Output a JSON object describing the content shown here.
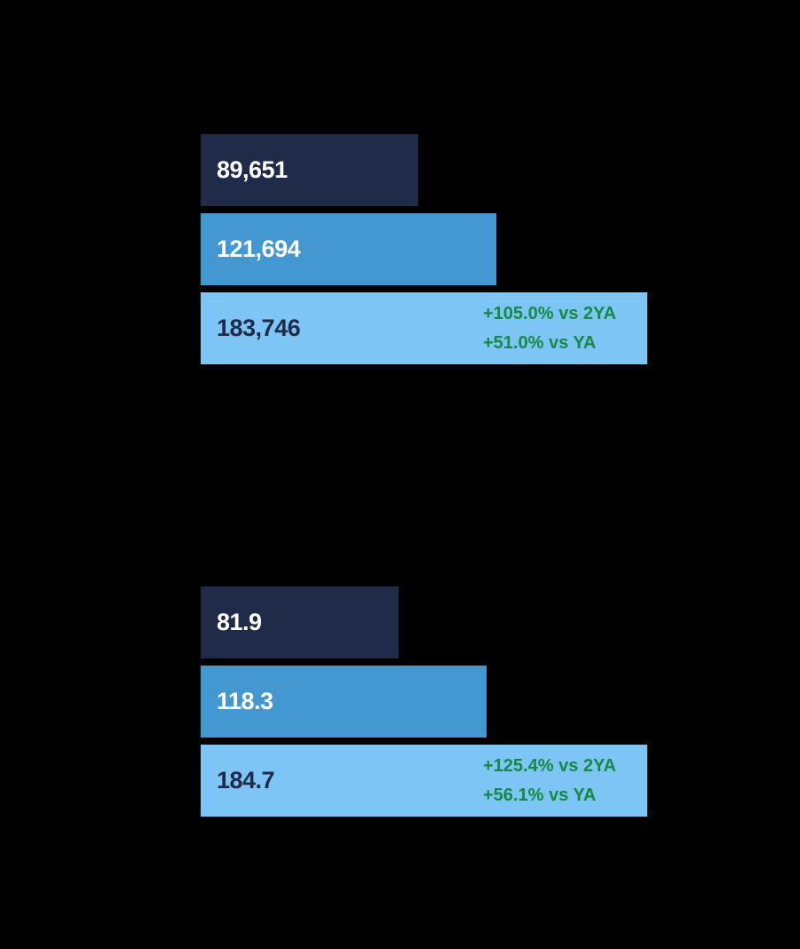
{
  "canvas": {
    "background_color": "#000000"
  },
  "colors": {
    "bar_dark_navy": "#1f2b48",
    "bar_medium_blue": "#4498d1",
    "bar_light_blue": "#7dc5f5",
    "label_white": "#ffffff",
    "label_dark_navy": "#1f2b48",
    "annotation_green": "#148a43"
  },
  "chart_data": [
    {
      "type": "bar",
      "orientation": "horizontal",
      "title": "",
      "xlabel": "",
      "ylabel": "",
      "legend": [],
      "grid": false,
      "xlim": [
        0,
        183746
      ],
      "bars": [
        {
          "label": "89,651",
          "value": 89651,
          "bar_color": "#1f2b48",
          "label_color": "#ffffff",
          "annotations": []
        },
        {
          "label": "121,694",
          "value": 121694,
          "bar_color": "#4498d1",
          "label_color": "#ffffff",
          "annotations": []
        },
        {
          "label": "183,746",
          "value": 183746,
          "bar_color": "#7dc5f5",
          "label_color": "#1f2b48",
          "annotation_color": "#148a43",
          "annotations": [
            "+105.0% vs 2YA",
            "+51.0% vs YA"
          ]
        }
      ]
    },
    {
      "type": "bar",
      "orientation": "horizontal",
      "title": "",
      "xlabel": "",
      "ylabel": "",
      "legend": [],
      "grid": false,
      "xlim": [
        0,
        184.7
      ],
      "bars": [
        {
          "label": "81.9",
          "value": 81.9,
          "bar_color": "#1f2b48",
          "label_color": "#ffffff",
          "annotations": []
        },
        {
          "label": "118.3",
          "value": 118.3,
          "bar_color": "#4498d1",
          "label_color": "#ffffff",
          "annotations": []
        },
        {
          "label": "184.7",
          "value": 184.7,
          "bar_color": "#7dc5f5",
          "label_color": "#1f2b48",
          "annotation_color": "#148a43",
          "annotations": [
            "+125.4% vs 2YA",
            "+56.1% vs YA"
          ]
        }
      ]
    }
  ]
}
